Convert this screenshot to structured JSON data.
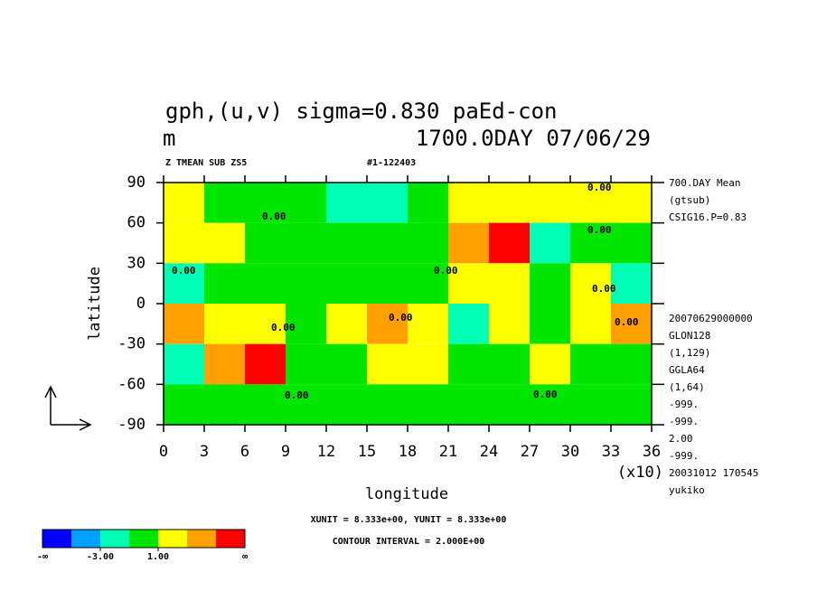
{
  "chart_data": {
    "type": "contour",
    "title": "gph,(u,v) sigma=0.830 paEd-con",
    "unit": "m",
    "subtitle": "1700.0DAY 07/06/29",
    "variable_label": "Z TMEAN SUB ZS5",
    "run_label": "#1-122403",
    "x_label": "longitude",
    "y_label": "latitude",
    "x_scale_label": "(x10)",
    "xlim": [
      0,
      360
    ],
    "ylim": [
      -90,
      90
    ],
    "xticks": [
      {
        "value": 0,
        "label": "0"
      },
      {
        "value": 30,
        "label": "3"
      },
      {
        "value": 60,
        "label": "6"
      },
      {
        "value": 90,
        "label": "9"
      },
      {
        "value": 120,
        "label": "12"
      },
      {
        "value": 150,
        "label": "15"
      },
      {
        "value": 180,
        "label": "18"
      },
      {
        "value": 210,
        "label": "21"
      },
      {
        "value": 240,
        "label": "24"
      },
      {
        "value": 270,
        "label": "27"
      },
      {
        "value": 300,
        "label": "30"
      },
      {
        "value": 330,
        "label": "33"
      },
      {
        "value": 360,
        "label": "36"
      }
    ],
    "yticks": [
      -90,
      -60,
      -30,
      0,
      30,
      60,
      90
    ],
    "side_info_top": [
      "700.DAY Mean",
      "(gtsub)",
      "CSIG16.P=0.83"
    ],
    "side_info_bottom": [
      "20070629000000",
      "GLON128",
      "(1,129)",
      "GGLA64",
      "(1,64)",
      "-999.",
      "-999.",
      "2.00",
      "-999.",
      "20031012 170545",
      "yukiko"
    ],
    "units_note": "XUNIT = 8.333e+00, YUNIT = 8.333e+00",
    "contour_interval_note": "CONTOUR INTERVAL = 2.000E+00",
    "contour_labels": [
      "0.00",
      "0.00",
      "0.00",
      "0.00",
      "0.00",
      "0.00",
      "0.00",
      "0.00",
      "0.00",
      "0.00",
      "0.00"
    ],
    "field": {
      "lon_edges": [
        0,
        30,
        60,
        90,
        120,
        150,
        180,
        210,
        240,
        270,
        300,
        330,
        360
      ],
      "lat_edges": [
        90,
        60,
        30,
        0,
        -30,
        -60,
        -90
      ],
      "values": [
        [
          1,
          0,
          0,
          0,
          -2,
          -3,
          0,
          1,
          2,
          2,
          1,
          2
        ],
        [
          2,
          2,
          0,
          -1,
          0,
          0,
          0,
          4,
          5,
          -2,
          -1,
          0
        ],
        [
          -2,
          0,
          0,
          -1,
          0,
          0,
          0,
          2,
          2,
          0,
          2,
          -3
        ],
        [
          4,
          2,
          2,
          0,
          2,
          4,
          2,
          -2,
          1,
          0,
          2,
          3
        ],
        [
          -2,
          3,
          5,
          0,
          -1,
          2,
          2,
          0,
          0,
          2,
          0,
          0
        ],
        [
          0,
          0,
          0,
          0,
          0,
          0,
          0,
          0,
          0,
          0,
          0,
          0
        ]
      ]
    },
    "colorbar": {
      "levels": [
        -5,
        -3,
        -1,
        1,
        3,
        5
      ],
      "colors": [
        "#0000ff",
        "#00a0ff",
        "#00ffb4",
        "#00e600",
        "#ffff00",
        "#ffa000",
        "#ff0000"
      ],
      "ticks": [
        {
          "value": -3,
          "label": "-3.00"
        },
        {
          "value": 1,
          "label": "1.00"
        }
      ],
      "low_label": "-∞",
      "high_label": "∞"
    }
  }
}
